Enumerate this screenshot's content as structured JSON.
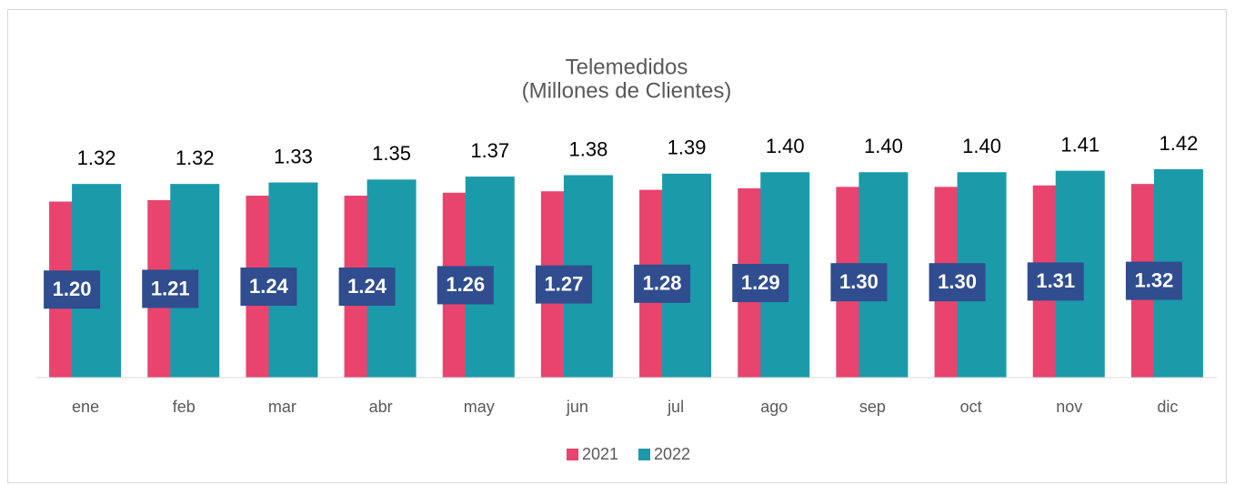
{
  "chart_data": {
    "type": "bar",
    "title": "Telemedidos",
    "subtitle": "(Millones de Clientes)",
    "categories": [
      "ene",
      "feb",
      "mar",
      "abr",
      "may",
      "jun",
      "jul",
      "ago",
      "sep",
      "oct",
      "nov",
      "dic"
    ],
    "series": [
      {
        "name": "2021",
        "color": "#e8446e",
        "values": [
          1.2,
          1.21,
          1.24,
          1.24,
          1.26,
          1.27,
          1.28,
          1.29,
          1.3,
          1.3,
          1.31,
          1.32
        ],
        "value_labels": [
          "1.20",
          "1.21",
          "1.24",
          "1.24",
          "1.26",
          "1.27",
          "1.28",
          "1.29",
          "1.30",
          "1.30",
          "1.31",
          "1.32"
        ]
      },
      {
        "name": "2022",
        "color": "#1b9aaa",
        "values": [
          1.32,
          1.32,
          1.33,
          1.35,
          1.37,
          1.38,
          1.39,
          1.4,
          1.4,
          1.4,
          1.41,
          1.42
        ],
        "value_labels": [
          "1.32",
          "1.32",
          "1.33",
          "1.35",
          "1.37",
          "1.38",
          "1.39",
          "1.40",
          "1.40",
          "1.40",
          "1.41",
          "1.42"
        ]
      }
    ],
    "ylim": [
      0,
      1.6
    ],
    "legend": "bottom"
  }
}
